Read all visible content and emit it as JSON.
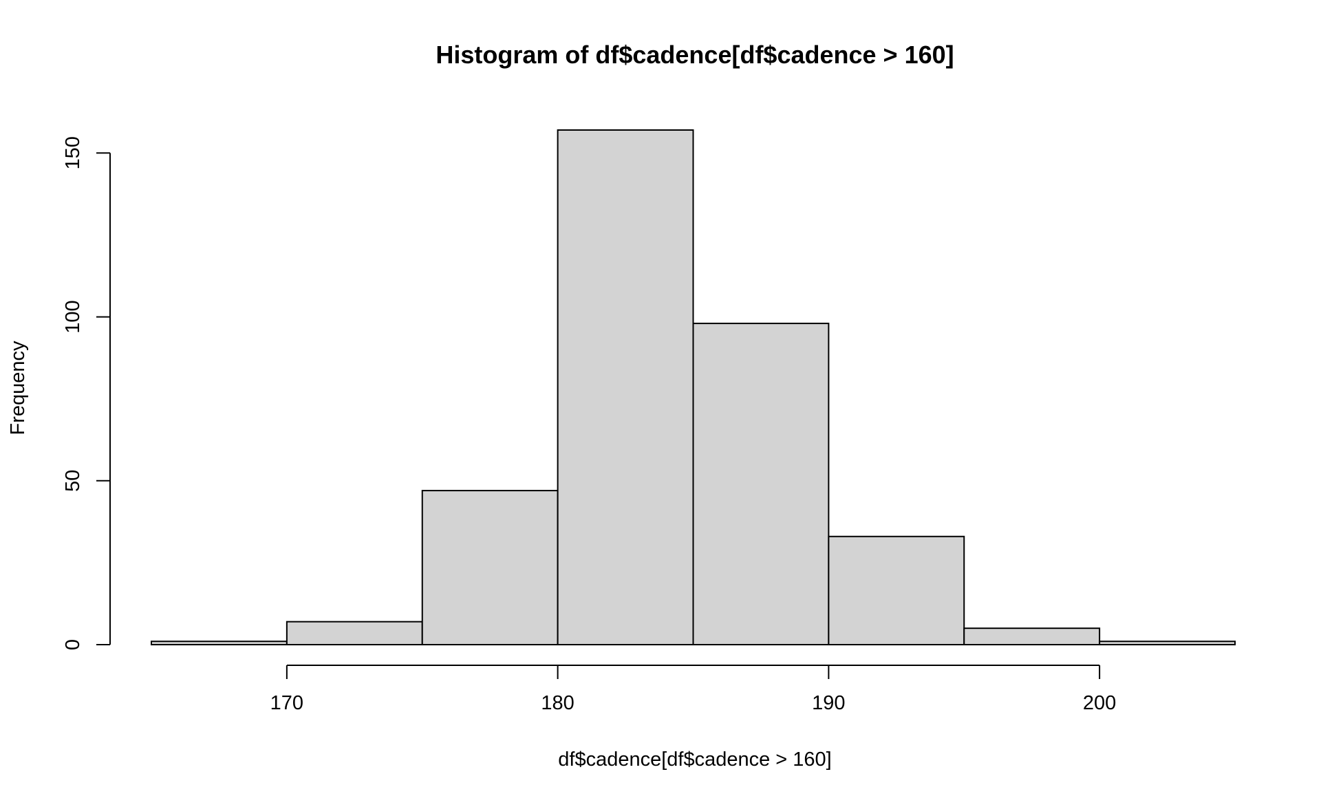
{
  "chart_data": {
    "type": "bar",
    "title": "Histogram of df$cadence[df$cadence > 160]",
    "xlabel": "df$cadence[df$cadence > 160]",
    "ylabel": "Frequency",
    "bins": [
      {
        "start": 165,
        "end": 170,
        "count": 1
      },
      {
        "start": 170,
        "end": 175,
        "count": 7
      },
      {
        "start": 175,
        "end": 180,
        "count": 47
      },
      {
        "start": 180,
        "end": 185,
        "count": 157
      },
      {
        "start": 185,
        "end": 190,
        "count": 98
      },
      {
        "start": 190,
        "end": 195,
        "count": 33
      },
      {
        "start": 195,
        "end": 200,
        "count": 5
      },
      {
        "start": 200,
        "end": 205,
        "count": 1
      }
    ],
    "xlim": [
      165,
      205
    ],
    "ylim": [
      0,
      157
    ],
    "x_ticks": [
      170,
      180,
      190,
      200
    ],
    "y_ticks": [
      0,
      50,
      100,
      150
    ],
    "bar_color": "#d3d3d3",
    "grid": false
  }
}
